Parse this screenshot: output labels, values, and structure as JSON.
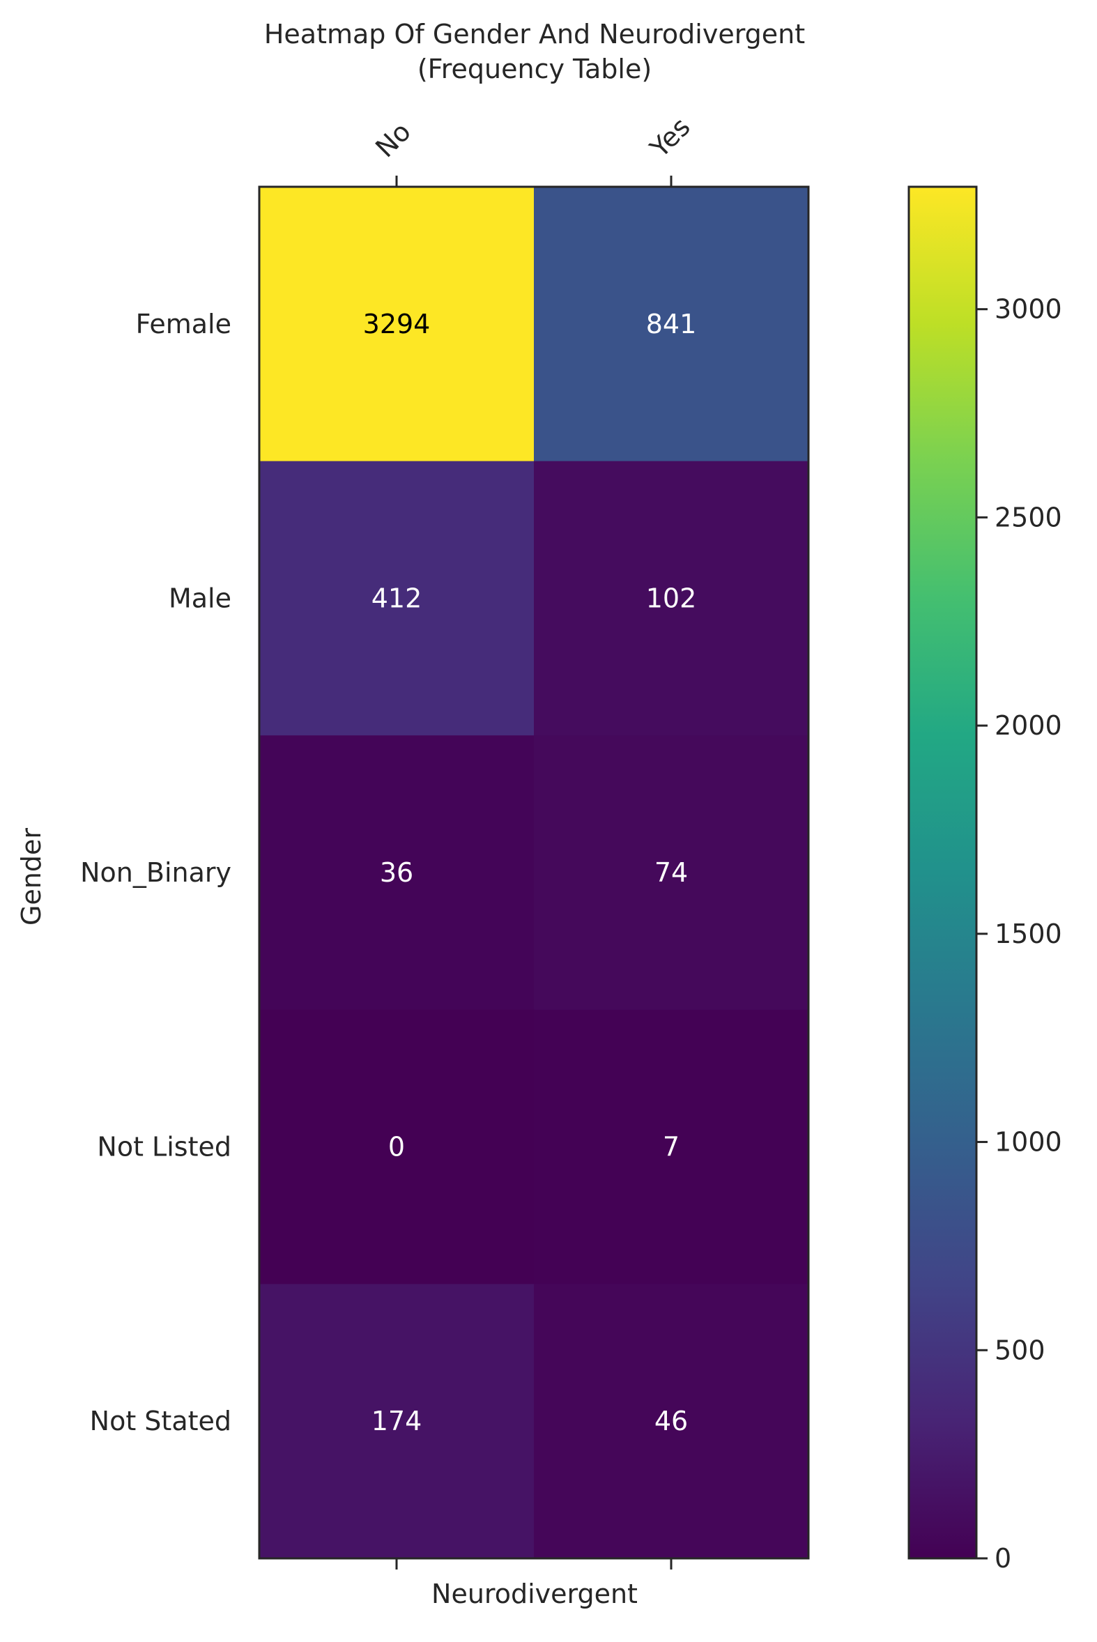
{
  "chart_data": {
    "type": "heatmap",
    "title": "Heatmap Of Gender And Neurodivergent\n(Frequency Table)",
    "xlabel": "Neurodivergent",
    "ylabel": "Gender",
    "columns": [
      "No",
      "Yes"
    ],
    "rows": [
      "Female",
      "Male",
      "Non_Binary",
      "Not Listed",
      "Not Stated"
    ],
    "values": [
      [
        3294,
        841
      ],
      [
        412,
        102
      ],
      [
        36,
        74
      ],
      [
        0,
        7
      ],
      [
        174,
        46
      ]
    ],
    "colorbar": {
      "colormap": "viridis",
      "range": [
        0,
        3294
      ],
      "ticks": [
        0,
        500,
        1000,
        1500,
        2000,
        2500,
        3000
      ]
    },
    "colors": {
      "frame": "#262626",
      "annotation_dark": "#000000",
      "annotation_light": "#ffffff"
    }
  }
}
